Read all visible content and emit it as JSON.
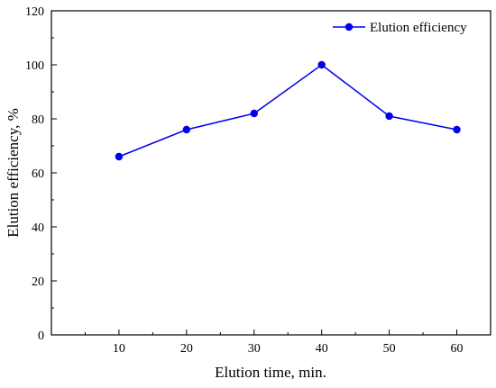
{
  "chart_data": {
    "type": "line",
    "x": [
      10,
      20,
      30,
      40,
      50,
      60
    ],
    "series": [
      {
        "name": "Elution efficiency",
        "values": [
          66,
          76,
          82,
          100,
          81,
          76
        ]
      }
    ],
    "xlabel": "Elution time, min.",
    "ylabel": "Elution efficiency, %",
    "xlim": [
      0,
      65
    ],
    "ylim": [
      0,
      120
    ],
    "xticks": [
      10,
      20,
      30,
      40,
      50,
      60
    ],
    "yticks": [
      0,
      20,
      40,
      60,
      80,
      100,
      120
    ],
    "grid": false,
    "legend_position": "top-right",
    "color": "#0000ee"
  }
}
